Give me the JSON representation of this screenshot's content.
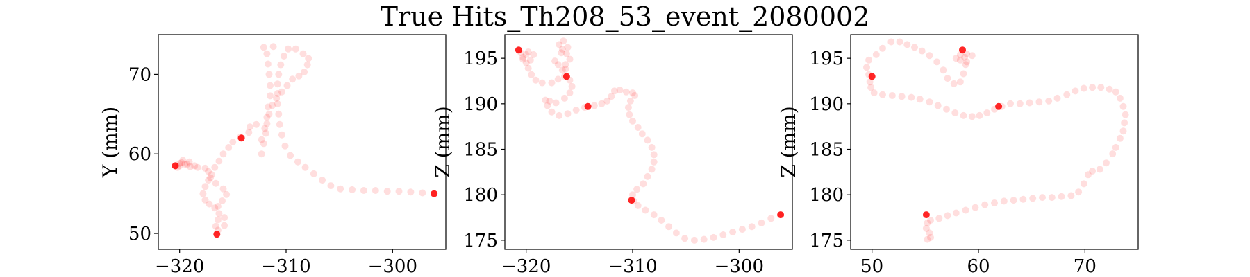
{
  "figure": {
    "title": "True Hits_Th208_53_event_2080002"
  },
  "chart_data": [
    {
      "type": "scatter",
      "xlabel": "",
      "ylabel": "Y (mm)",
      "xlim": [
        -322,
        -295
      ],
      "ylim": [
        48,
        75
      ],
      "xticks": [
        -320,
        -310,
        -300
      ],
      "yticks": [
        50,
        60,
        70
      ],
      "xtick_labels": [
        "−320",
        "−310",
        "−300"
      ],
      "ytick_labels": [
        "50",
        "60",
        "70"
      ],
      "grid": false,
      "point_color": "#ff0000",
      "hits": [
        [
          -296.1,
          55.0
        ],
        [
          -297.2,
          55.1
        ],
        [
          -298.3,
          55.2
        ],
        [
          -299.4,
          55.3
        ],
        [
          -300.5,
          55.3
        ],
        [
          -301.6,
          55.4
        ],
        [
          -302.7,
          55.4
        ],
        [
          -303.8,
          55.5
        ],
        [
          -304.9,
          55.6
        ],
        [
          -305.8,
          56.0
        ],
        [
          -306.6,
          56.7
        ],
        [
          -307.4,
          57.5
        ],
        [
          -308.2,
          58.3
        ],
        [
          -308.9,
          59.0
        ],
        [
          -309.6,
          59.8
        ],
        [
          -310.1,
          61.0
        ],
        [
          -310.4,
          62.4
        ],
        [
          -310.6,
          63.7
        ],
        [
          -310.7,
          65.0
        ],
        [
          -310.8,
          66.3
        ],
        [
          -310.8,
          67.6
        ],
        [
          -310.8,
          68.8
        ],
        [
          -310.7,
          70.0
        ],
        [
          -310.5,
          71.2
        ],
        [
          -310.2,
          72.3
        ],
        [
          -309.8,
          73.2
        ],
        [
          -309.1,
          73.2
        ],
        [
          -308.4,
          72.6
        ],
        [
          -307.9,
          72.0
        ],
        [
          -308.0,
          71.2
        ],
        [
          -308.3,
          70.3
        ],
        [
          -308.8,
          69.8
        ],
        [
          -309.4,
          69.4
        ],
        [
          -309.9,
          68.6
        ],
        [
          -310.4,
          67.8
        ],
        [
          -310.9,
          67.0
        ],
        [
          -311.3,
          66.1
        ],
        [
          -311.6,
          65.0
        ],
        [
          -311.8,
          63.8
        ],
        [
          -311.9,
          62.6
        ],
        [
          -312.1,
          61.3
        ],
        [
          -312.3,
          60.0
        ],
        [
          -312.3,
          61.8
        ],
        [
          -312.0,
          63.2
        ],
        [
          -311.8,
          64.6
        ],
        [
          -311.7,
          65.9
        ],
        [
          -311.5,
          67.3
        ],
        [
          -311.5,
          68.6
        ],
        [
          -311.6,
          70.0
        ],
        [
          -311.7,
          71.3
        ],
        [
          -311.8,
          72.6
        ],
        [
          -312.1,
          73.4
        ],
        [
          -311.2,
          73.5
        ],
        [
          -312.8,
          63.7
        ],
        [
          -313.4,
          63.4
        ],
        [
          -313.5,
          62.7
        ],
        [
          -314.3,
          62.1
        ],
        [
          -315.0,
          61.5
        ],
        [
          -315.4,
          60.8
        ],
        [
          -315.9,
          60.0
        ],
        [
          -316.3,
          59.1
        ],
        [
          -316.7,
          58.3
        ],
        [
          -317.0,
          57.4
        ],
        [
          -317.3,
          56.7
        ],
        [
          -317.6,
          55.9
        ],
        [
          -317.8,
          55.0
        ],
        [
          -317.6,
          54.2
        ],
        [
          -317.2,
          53.7
        ],
        [
          -316.7,
          53.2
        ],
        [
          -316.3,
          52.5
        ],
        [
          -316.4,
          51.7
        ],
        [
          -316.6,
          50.9
        ],
        [
          -316.4,
          50.4
        ],
        [
          -315.8,
          51.0
        ],
        [
          -315.8,
          52.0
        ],
        [
          -316.4,
          53.4
        ],
        [
          -316.0,
          54.1
        ],
        [
          -315.6,
          54.9
        ],
        [
          -315.9,
          55.6
        ],
        [
          -316.6,
          56.3
        ],
        [
          -317.1,
          57.0
        ],
        [
          -317.3,
          57.8
        ],
        [
          -317.6,
          58.2
        ],
        [
          -318.3,
          58.3
        ],
        [
          -319.0,
          58.4
        ],
        [
          -319.5,
          58.7
        ],
        [
          -319.7,
          59.2
        ],
        [
          -319.8,
          58.9
        ],
        [
          -320.0,
          58.5
        ],
        [
          -320.2,
          58.3
        ],
        [
          -320.0,
          58.8
        ],
        [
          -319.1,
          59.0
        ],
        [
          -318.6,
          58.5
        ],
        [
          -319.3,
          58.7
        ]
      ],
      "markers": [
        [
          -320.4,
          58.5
        ],
        [
          -314.2,
          62.0
        ],
        [
          -316.5,
          49.9
        ],
        [
          -296.1,
          55.0
        ]
      ]
    },
    {
      "type": "scatter",
      "xlabel": "",
      "ylabel": "Z (mm)",
      "xlim": [
        -322,
        -295
      ],
      "ylim": [
        174,
        197.6
      ],
      "xticks": [
        -320,
        -310,
        -300
      ],
      "yticks": [
        175,
        180,
        185,
        190,
        195
      ],
      "xtick_labels": [
        "−320",
        "−310",
        "−300"
      ],
      "ytick_labels": [
        "175",
        "180",
        "185",
        "190",
        "195"
      ],
      "grid": false,
      "point_color": "#ff0000",
      "hits": [
        [
          -296.1,
          177.8
        ],
        [
          -297.0,
          177.4
        ],
        [
          -297.9,
          176.9
        ],
        [
          -298.8,
          176.5
        ],
        [
          -299.7,
          176.2
        ],
        [
          -300.6,
          175.9
        ],
        [
          -301.5,
          175.6
        ],
        [
          -302.4,
          175.3
        ],
        [
          -303.3,
          175.1
        ],
        [
          -304.2,
          175.0
        ],
        [
          -305.1,
          175.2
        ],
        [
          -305.9,
          175.8
        ],
        [
          -306.6,
          176.5
        ],
        [
          -307.3,
          177.2
        ],
        [
          -308.0,
          177.8
        ],
        [
          -308.8,
          178.3
        ],
        [
          -309.5,
          178.8
        ],
        [
          -309.9,
          179.3
        ],
        [
          -310.0,
          180.0
        ],
        [
          -309.6,
          180.6
        ],
        [
          -309.0,
          181.2
        ],
        [
          -308.6,
          182.0
        ],
        [
          -308.2,
          182.8
        ],
        [
          -308.0,
          183.6
        ],
        [
          -308.0,
          184.4
        ],
        [
          -308.2,
          185.2
        ],
        [
          -308.6,
          186.0
        ],
        [
          -309.1,
          186.7
        ],
        [
          -309.5,
          187.4
        ],
        [
          -310.0,
          188.1
        ],
        [
          -310.3,
          188.8
        ],
        [
          -310.4,
          189.6
        ],
        [
          -310.2,
          190.3
        ],
        [
          -309.8,
          190.9
        ],
        [
          -310.0,
          191.2
        ],
        [
          -310.6,
          191.3
        ],
        [
          -311.2,
          191.5
        ],
        [
          -311.7,
          191.4
        ],
        [
          -312.0,
          190.8
        ],
        [
          -312.4,
          190.3
        ],
        [
          -312.9,
          190.0
        ],
        [
          -313.6,
          189.8
        ],
        [
          -314.5,
          189.6
        ],
        [
          -315.3,
          189.3
        ],
        [
          -316.1,
          188.9
        ],
        [
          -316.9,
          188.7
        ],
        [
          -317.6,
          189.1
        ],
        [
          -318.0,
          189.8
        ],
        [
          -318.2,
          190.4
        ],
        [
          -317.8,
          190.3
        ],
        [
          -317.2,
          190.1
        ],
        [
          -316.4,
          190.6
        ],
        [
          -315.9,
          191.2
        ],
        [
          -315.7,
          191.9
        ],
        [
          -315.9,
          192.6
        ],
        [
          -316.4,
          193.0
        ],
        [
          -316.6,
          193.7
        ],
        [
          -316.3,
          194.3
        ],
        [
          -315.9,
          194.9
        ],
        [
          -316.2,
          195.5
        ],
        [
          -316.6,
          196.0
        ],
        [
          -316.9,
          196.5
        ],
        [
          -316.5,
          196.9
        ],
        [
          -316.1,
          196.2
        ],
        [
          -316.7,
          195.6
        ],
        [
          -317.3,
          194.7
        ],
        [
          -317.0,
          194.3
        ],
        [
          -316.3,
          193.8
        ],
        [
          -317.0,
          192.7
        ],
        [
          -317.6,
          192.3
        ],
        [
          -318.5,
          192.3
        ],
        [
          -319.1,
          192.6
        ],
        [
          -319.5,
          193.2
        ],
        [
          -319.8,
          193.9
        ],
        [
          -320.0,
          194.5
        ],
        [
          -320.3,
          195.1
        ],
        [
          -320.5,
          195.6
        ],
        [
          -320.0,
          195.4
        ],
        [
          -319.6,
          194.8
        ],
        [
          -320.3,
          194.9
        ],
        [
          -319.3,
          195.4
        ],
        [
          -319.8,
          195.7
        ]
      ],
      "markers": [
        [
          -320.7,
          195.9
        ],
        [
          -316.2,
          193.0
        ],
        [
          -314.2,
          189.7
        ],
        [
          -296.1,
          177.8
        ],
        [
          -310.1,
          179.4
        ]
      ]
    },
    {
      "type": "scatter",
      "xlabel": "",
      "ylabel": "Z (mm)",
      "xlim": [
        48,
        75
      ],
      "ylim": [
        174,
        197.6
      ],
      "xticks": [
        50,
        60,
        70
      ],
      "yticks": [
        175,
        180,
        185,
        190,
        195
      ],
      "xtick_labels": [
        "50",
        "60",
        "70"
      ],
      "ytick_labels": [
        "175",
        "180",
        "185",
        "190",
        "195"
      ],
      "grid": false,
      "point_color": "#ff0000",
      "hits": [
        [
          55.2,
          175.1
        ],
        [
          55.5,
          175.3
        ],
        [
          55.4,
          175.8
        ],
        [
          55.1,
          176.3
        ],
        [
          55.2,
          176.9
        ],
        [
          55.5,
          177.2
        ],
        [
          56.3,
          177.4
        ],
        [
          57.1,
          177.7
        ],
        [
          57.9,
          178.0
        ],
        [
          58.8,
          178.3
        ],
        [
          59.7,
          178.6
        ],
        [
          60.6,
          178.9
        ],
        [
          61.5,
          179.1
        ],
        [
          62.4,
          179.3
        ],
        [
          63.3,
          179.4
        ],
        [
          64.2,
          179.5
        ],
        [
          65.1,
          179.6
        ],
        [
          66.0,
          179.7
        ],
        [
          66.9,
          179.7
        ],
        [
          67.8,
          179.8
        ],
        [
          68.7,
          179.9
        ],
        [
          69.4,
          180.3
        ],
        [
          69.9,
          181.2
        ],
        [
          70.3,
          182.2
        ],
        [
          70.7,
          182.6
        ],
        [
          71.4,
          182.8
        ],
        [
          72.0,
          183.5
        ],
        [
          72.6,
          184.5
        ],
        [
          72.9,
          185.2
        ],
        [
          73.3,
          186.2
        ],
        [
          73.6,
          187.0
        ],
        [
          73.7,
          187.9
        ],
        [
          73.8,
          188.8
        ],
        [
          73.6,
          189.7
        ],
        [
          73.3,
          190.6
        ],
        [
          72.9,
          191.3
        ],
        [
          72.3,
          191.6
        ],
        [
          71.5,
          191.8
        ],
        [
          70.7,
          191.8
        ],
        [
          69.9,
          191.7
        ],
        [
          69.1,
          191.4
        ],
        [
          68.3,
          191.0
        ],
        [
          67.4,
          190.6
        ],
        [
          66.6,
          190.3
        ],
        [
          65.7,
          190.2
        ],
        [
          64.8,
          190.1
        ],
        [
          63.9,
          190.0
        ],
        [
          63.0,
          190.0
        ],
        [
          62.2,
          189.7
        ],
        [
          61.5,
          189.4
        ],
        [
          60.8,
          189.0
        ],
        [
          60.1,
          188.7
        ],
        [
          59.4,
          188.6
        ],
        [
          58.6,
          188.7
        ],
        [
          57.8,
          189.0
        ],
        [
          57.0,
          189.4
        ],
        [
          56.2,
          189.8
        ],
        [
          55.4,
          190.2
        ],
        [
          54.5,
          190.5
        ],
        [
          53.7,
          190.7
        ],
        [
          52.8,
          190.8
        ],
        [
          51.9,
          190.9
        ],
        [
          51.0,
          191.0
        ],
        [
          50.2,
          191.2
        ],
        [
          49.9,
          191.8
        ],
        [
          49.8,
          192.4
        ],
        [
          49.7,
          193.2
        ],
        [
          49.5,
          194.0
        ],
        [
          49.7,
          194.8
        ],
        [
          50.4,
          195.4
        ],
        [
          51.0,
          196.1
        ],
        [
          51.8,
          196.8
        ],
        [
          52.6,
          196.8
        ],
        [
          53.3,
          196.5
        ],
        [
          54.0,
          196.2
        ],
        [
          54.7,
          195.8
        ],
        [
          55.4,
          195.3
        ],
        [
          56.1,
          194.6
        ],
        [
          56.7,
          193.7
        ],
        [
          57.1,
          192.8
        ],
        [
          57.7,
          192.2
        ],
        [
          58.3,
          192.4
        ],
        [
          58.6,
          193.3
        ],
        [
          58.8,
          194.3
        ],
        [
          58.7,
          195.1
        ],
        [
          58.3,
          194.8
        ],
        [
          58.3,
          195.4
        ],
        [
          58.9,
          195.5
        ],
        [
          59.4,
          195.3
        ],
        [
          58.9,
          194.6
        ],
        [
          57.9,
          195.0
        ]
      ],
      "markers": [
        [
          58.5,
          195.9
        ],
        [
          50.0,
          193.0
        ],
        [
          61.9,
          189.7
        ],
        [
          55.1,
          177.8
        ]
      ]
    }
  ]
}
